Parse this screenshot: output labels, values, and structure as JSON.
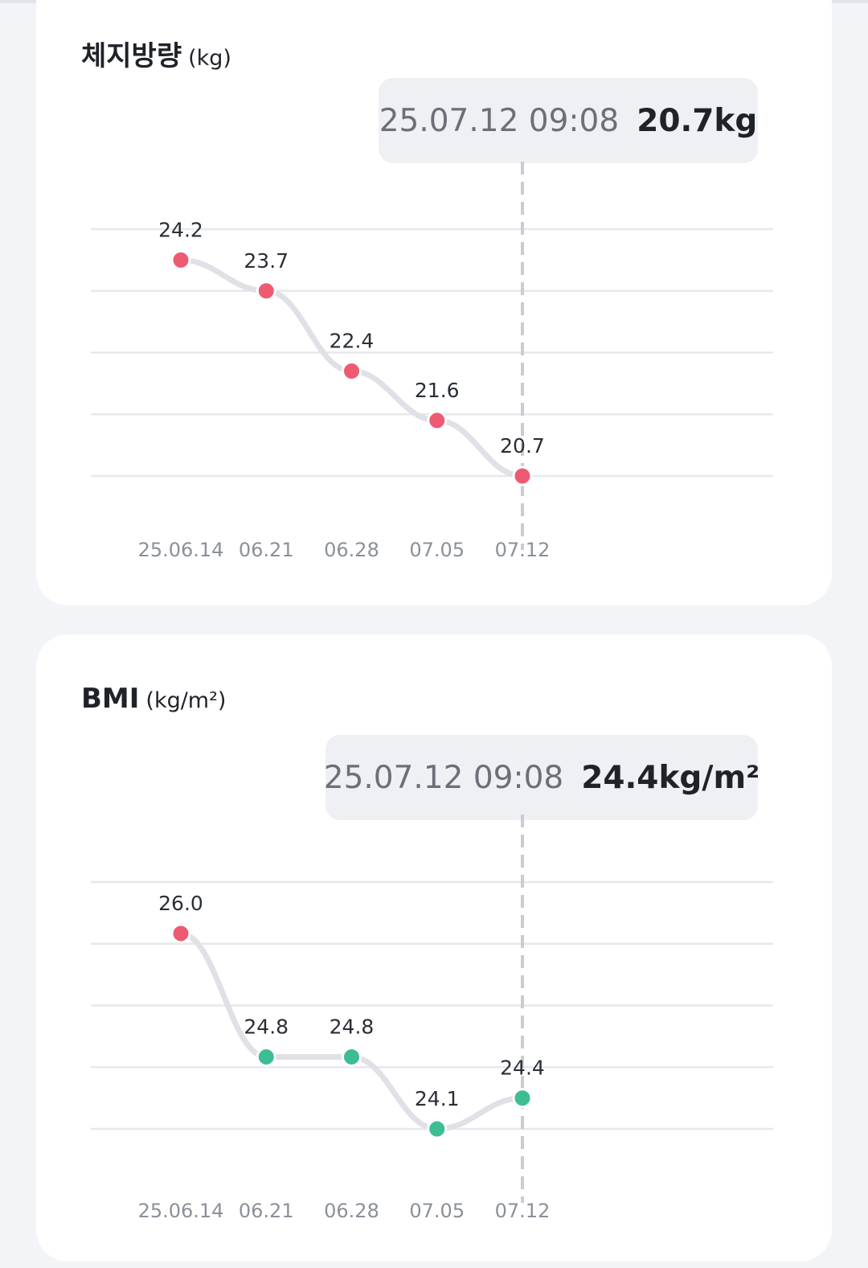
{
  "charts": [
    {
      "title": "체지방량",
      "unit": "(kg)",
      "tooltip": {
        "datetime": "25.07.12 09:08",
        "value": "20.7kg"
      }
    },
    {
      "title": "BMI",
      "unit": "(kg/m²)",
      "tooltip": {
        "datetime": "25.07.12 09:08",
        "value": "24.4kg/m²"
      }
    }
  ],
  "chart_data": [
    {
      "type": "line",
      "title": "체지방량",
      "ylabel": "(kg)",
      "categories": [
        "25.06.14",
        "06.21",
        "06.28",
        "07.05",
        "07.12"
      ],
      "values": [
        24.2,
        23.7,
        22.4,
        21.6,
        20.7
      ],
      "labels": [
        "24.2",
        "23.7",
        "22.4",
        "21.6",
        "20.7"
      ],
      "point_colors": [
        "#ef5a73",
        "#ef5a73",
        "#ef5a73",
        "#ef5a73",
        "#ef5a73"
      ],
      "ylim": [
        20.7,
        24.7
      ],
      "gridlines": 5,
      "grid": true,
      "line_color": "#dfe1e6",
      "selected_index": 4
    },
    {
      "type": "line",
      "title": "BMI",
      "ylabel": "(kg/m²)",
      "categories": [
        "25.06.14",
        "06.21",
        "06.28",
        "07.05",
        "07.12"
      ],
      "values": [
        26.0,
        24.8,
        24.8,
        24.1,
        24.4
      ],
      "labels": [
        "26.0",
        "24.8",
        "24.8",
        "24.1",
        "24.4"
      ],
      "point_colors": [
        "#ef5a73",
        "#3dbd94",
        "#3dbd94",
        "#3dbd94",
        "#3dbd94"
      ],
      "ylim": [
        24.1,
        26.5
      ],
      "gridlines": 5,
      "grid": true,
      "line_color": "#dfe1e6",
      "selected_index": 4
    }
  ]
}
